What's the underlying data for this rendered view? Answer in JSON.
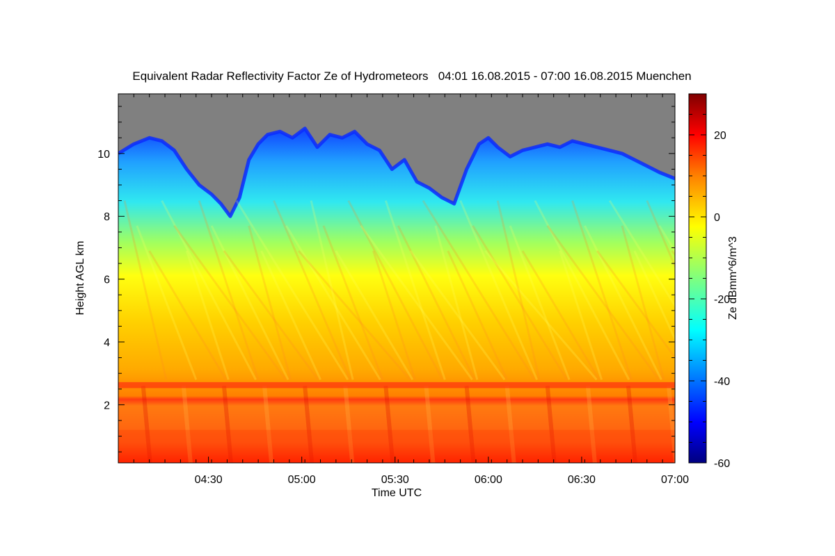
{
  "chart_data": {
    "type": "heatmap",
    "title": "Equivalent Radar Reflectivity Factor Ze of Hydrometeors   04:01 16.08.2015 - 07:00 16.08.2015 Muenchen",
    "xlabel": "Time UTC",
    "ylabel": "Height AGL km",
    "colorbar_label": "Ze dBmm^6/m^3",
    "x_range": [
      "04:01",
      "07:00"
    ],
    "ylim": [
      0.15,
      11.9
    ],
    "zlim": [
      -60,
      30
    ],
    "x_ticks": [
      {
        "label": "04:30",
        "minutes_after_start": 29
      },
      {
        "label": "05:00",
        "minutes_after_start": 59
      },
      {
        "label": "05:30",
        "minutes_after_start": 89
      },
      {
        "label": "06:00",
        "minutes_after_start": 119
      },
      {
        "label": "06:30",
        "minutes_after_start": 149
      },
      {
        "label": "07:00",
        "minutes_after_start": 179
      }
    ],
    "y_ticks": [
      2,
      4,
      6,
      8,
      10
    ],
    "colorbar_ticks": [
      -60,
      -40,
      -20,
      0,
      20
    ],
    "colormap": [
      "#00007f",
      "#0000ff",
      "#007fff",
      "#00ffff",
      "#7fff7f",
      "#ffff00",
      "#ff7f00",
      "#ff0000",
      "#7f0000"
    ],
    "no_data_color": "#808080",
    "melting_layer_km": 2.65,
    "cloud_top_km": [
      [
        0,
        10.0
      ],
      [
        5,
        10.3
      ],
      [
        10,
        10.5
      ],
      [
        14,
        10.4
      ],
      [
        18,
        10.1
      ],
      [
        22,
        9.5
      ],
      [
        26,
        9.0
      ],
      [
        30,
        8.7
      ],
      [
        33,
        8.4
      ],
      [
        36,
        8.0
      ],
      [
        39,
        8.6
      ],
      [
        42,
        9.8
      ],
      [
        45,
        10.3
      ],
      [
        48,
        10.6
      ],
      [
        52,
        10.7
      ],
      [
        56,
        10.5
      ],
      [
        60,
        10.8
      ],
      [
        64,
        10.2
      ],
      [
        68,
        10.6
      ],
      [
        72,
        10.5
      ],
      [
        76,
        10.7
      ],
      [
        80,
        10.3
      ],
      [
        84,
        10.1
      ],
      [
        88,
        9.5
      ],
      [
        92,
        9.8
      ],
      [
        96,
        9.1
      ],
      [
        100,
        8.9
      ],
      [
        104,
        8.6
      ],
      [
        108,
        8.4
      ],
      [
        112,
        9.5
      ],
      [
        116,
        10.3
      ],
      [
        119,
        10.5
      ],
      [
        122,
        10.2
      ],
      [
        126,
        9.9
      ],
      [
        130,
        10.1
      ],
      [
        134,
        10.2
      ],
      [
        138,
        10.3
      ],
      [
        142,
        10.2
      ],
      [
        146,
        10.4
      ],
      [
        150,
        10.3
      ],
      [
        154,
        10.2
      ],
      [
        158,
        10.1
      ],
      [
        162,
        10.0
      ],
      [
        166,
        9.8
      ],
      [
        170,
        9.6
      ],
      [
        174,
        9.4
      ],
      [
        179,
        9.2
      ]
    ]
  }
}
